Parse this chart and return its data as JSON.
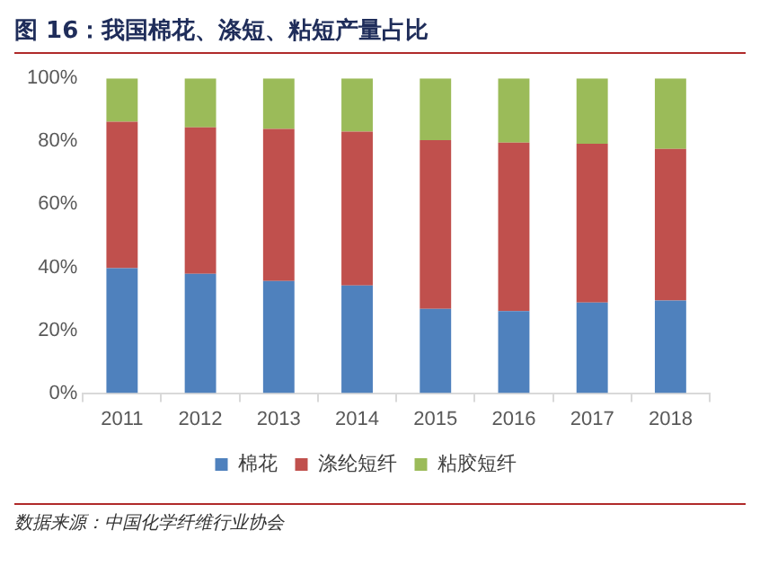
{
  "chart_data": {
    "type": "bar",
    "title": "图 16：我国棉花、涤短、粘短产量占比",
    "annotations": [
      "数据来源：中国化学纤维行业协会"
    ],
    "categories": [
      "2011",
      "2012",
      "2013",
      "2014",
      "2015",
      "2016",
      "2017",
      "2018"
    ],
    "stacked": true,
    "ylim": [
      0,
      100
    ],
    "yticks": [
      {
        "value": 0,
        "label": "0%"
      },
      {
        "value": 20,
        "label": "20%"
      },
      {
        "value": 40,
        "label": "40%"
      },
      {
        "value": 60,
        "label": "60%"
      },
      {
        "value": 80,
        "label": "80%"
      },
      {
        "value": 100,
        "label": "100%"
      }
    ],
    "grid": false,
    "legend": "bottom",
    "series": [
      {
        "name": "棉花",
        "color": "#4f81bd",
        "values": [
          39.7,
          37.9,
          35.6,
          34.2,
          26.8,
          26.1,
          28.8,
          29.4
        ]
      },
      {
        "name": "涤纶短纤",
        "color": "#c0504d",
        "values": [
          46.5,
          46.5,
          48.3,
          48.9,
          53.6,
          53.5,
          50.4,
          48.2
        ]
      },
      {
        "name": "粘胶短纤",
        "color": "#9bbb59",
        "values": [
          13.8,
          15.6,
          16.1,
          16.9,
          19.6,
          20.4,
          20.8,
          22.4
        ]
      }
    ]
  }
}
